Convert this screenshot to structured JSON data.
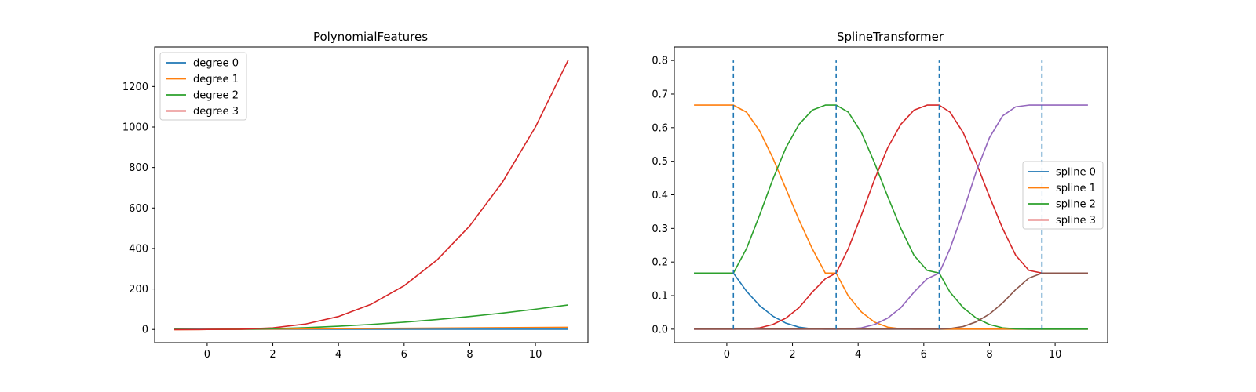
{
  "chart_data": [
    {
      "type": "line",
      "title": "PolynomialFeatures",
      "xlabel": "",
      "ylabel": "",
      "xlim": [
        -1.6,
        11.6
      ],
      "ylim": [
        -65,
        1395
      ],
      "xticks": [
        0,
        2,
        4,
        6,
        8,
        10
      ],
      "yticks": [
        0,
        200,
        400,
        600,
        800,
        1000,
        1200
      ],
      "legend": "top-left",
      "grid": false,
      "x": [
        -1,
        0,
        1,
        2,
        3,
        4,
        5,
        6,
        7,
        8,
        9,
        10,
        11
      ],
      "series": [
        {
          "name": "degree 0",
          "color": "#1f77b4",
          "values": [
            1,
            1,
            1,
            1,
            1,
            1,
            1,
            1,
            1,
            1,
            1,
            1,
            1
          ]
        },
        {
          "name": "degree 1",
          "color": "#ff7f0e",
          "values": [
            -1,
            0,
            1,
            2,
            3,
            4,
            5,
            6,
            7,
            8,
            9,
            10,
            11
          ]
        },
        {
          "name": "degree 2",
          "color": "#2ca02c",
          "values": [
            1,
            0,
            1,
            4,
            9,
            16,
            25,
            36,
            49,
            64,
            81,
            100,
            121
          ]
        },
        {
          "name": "degree 3",
          "color": "#d62728",
          "values": [
            -1,
            0,
            1,
            8,
            27,
            64,
            125,
            216,
            343,
            512,
            729,
            1000,
            1331
          ]
        }
      ]
    },
    {
      "type": "line",
      "title": "SplineTransformer",
      "xlabel": "",
      "ylabel": "",
      "xlim": [
        -1.6,
        11.6
      ],
      "ylim": [
        -0.04,
        0.84
      ],
      "xticks": [
        0,
        2,
        4,
        6,
        8,
        10
      ],
      "yticks": [
        0.0,
        0.1,
        0.2,
        0.3,
        0.4,
        0.5,
        0.6,
        0.7,
        0.8
      ],
      "legend": "center-right",
      "grid": false,
      "x": [
        -1.0,
        0.2,
        0.6,
        1.0,
        1.4,
        1.8,
        2.2,
        2.6,
        3.0,
        3.33,
        3.7,
        4.1,
        4.5,
        4.9,
        5.3,
        5.7,
        6.1,
        6.47,
        6.8,
        7.2,
        7.6,
        8.0,
        8.4,
        8.8,
        9.2,
        9.6,
        11.0
      ],
      "knots": [
        0.2,
        3.33,
        6.47,
        9.6
      ],
      "knot_line_top": 0.8,
      "series": [
        {
          "name": "spline 0",
          "color": "#1f77b4",
          "values": [
            0.167,
            0.167,
            0.113,
            0.07,
            0.039,
            0.018,
            0.006,
            0.001,
            0.0,
            0.0,
            0.0,
            0.0,
            0.0,
            0.0,
            0.0,
            0.0,
            0.0,
            0.0,
            0.0,
            0.0,
            0.0,
            0.0,
            0.0,
            0.0,
            0.0,
            0.0,
            0.0
          ]
        },
        {
          "name": "spline 1",
          "color": "#ff7f0e",
          "values": [
            0.667,
            0.667,
            0.646,
            0.59,
            0.51,
            0.418,
            0.325,
            0.24,
            0.167,
            0.167,
            0.099,
            0.051,
            0.021,
            0.006,
            0.001,
            0.0,
            0.0,
            0.0,
            0.0,
            0.0,
            0.0,
            0.0,
            0.0,
            0.0,
            0.0,
            0.0,
            0.0
          ]
        },
        {
          "name": "spline 2",
          "color": "#2ca02c",
          "values": [
            0.167,
            0.167,
            0.24,
            0.34,
            0.446,
            0.54,
            0.61,
            0.652,
            0.667,
            0.667,
            0.646,
            0.585,
            0.495,
            0.395,
            0.3,
            0.22,
            0.175,
            0.167,
            0.11,
            0.064,
            0.033,
            0.014,
            0.004,
            0.001,
            0.0,
            0.0,
            0.0
          ]
        },
        {
          "name": "spline 3",
          "color": "#d62728",
          "values": [
            0.0,
            0.0,
            0.001,
            0.004,
            0.014,
            0.033,
            0.064,
            0.11,
            0.15,
            0.167,
            0.24,
            0.34,
            0.446,
            0.54,
            0.61,
            0.652,
            0.667,
            0.667,
            0.646,
            0.585,
            0.495,
            0.395,
            0.3,
            0.22,
            0.175,
            0.167,
            0.167
          ]
        },
        {
          "name": "",
          "color": "#9467bd",
          "values": [
            0.0,
            0.0,
            0.0,
            0.0,
            0.0,
            0.0,
            0.0,
            0.0,
            0.0,
            0.0,
            0.001,
            0.004,
            0.014,
            0.033,
            0.064,
            0.11,
            0.15,
            0.167,
            0.24,
            0.35,
            0.47,
            0.57,
            0.635,
            0.662,
            0.667,
            0.667,
            0.667
          ]
        },
        {
          "name": "",
          "color": "#8c564b",
          "values": [
            0.0,
            0.0,
            0.0,
            0.0,
            0.0,
            0.0,
            0.0,
            0.0,
            0.0,
            0.0,
            0.0,
            0.0,
            0.0,
            0.0,
            0.0,
            0.0,
            0.0,
            0.0,
            0.002,
            0.008,
            0.022,
            0.045,
            0.078,
            0.118,
            0.152,
            0.167,
            0.167
          ]
        }
      ]
    }
  ]
}
